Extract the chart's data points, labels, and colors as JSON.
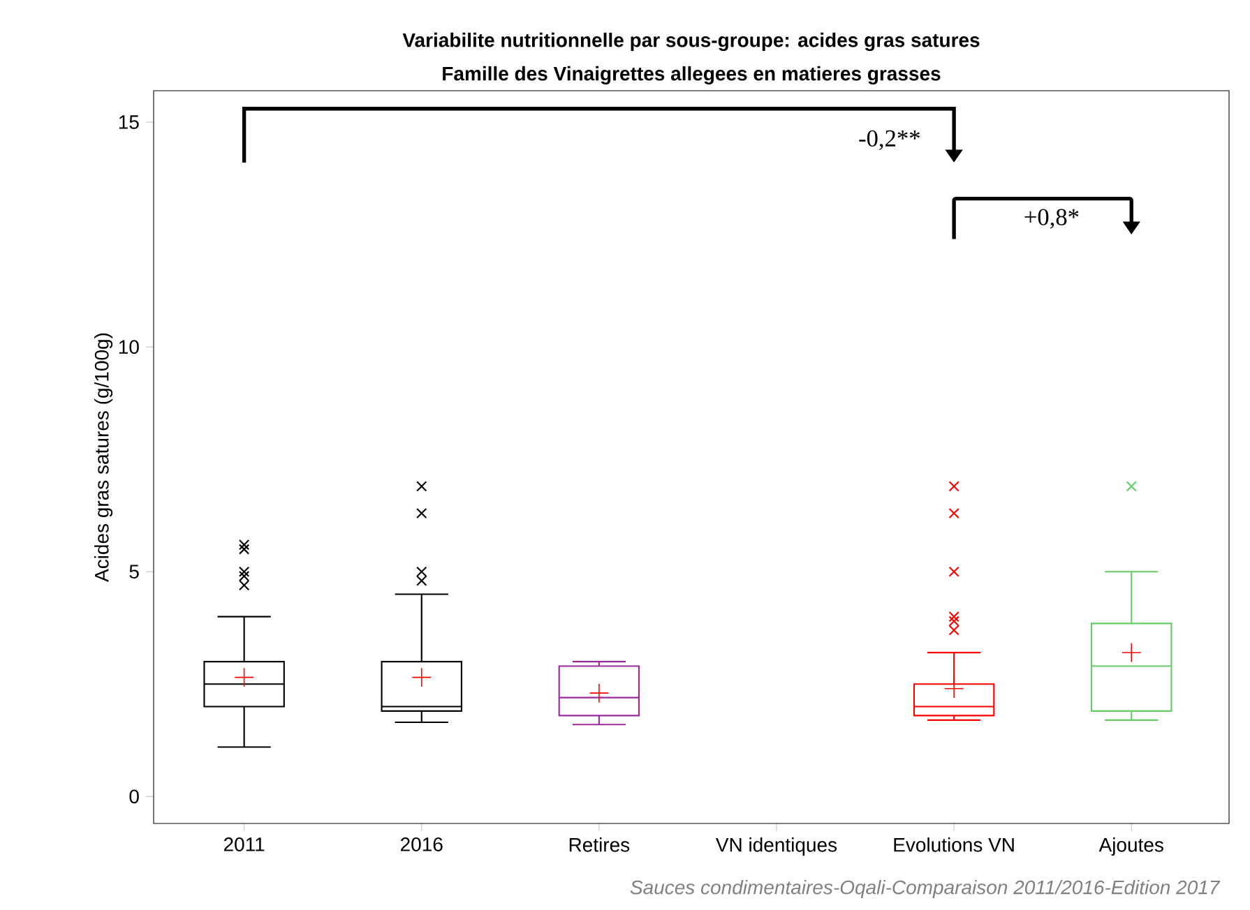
{
  "chart_data": {
    "type": "box",
    "title": "Variabilite nutritionnelle par sous-groupe: acides gras satures",
    "subtitle": "Famille des Vinaigrettes allegees en matieres grasses",
    "ylabel": "Acides gras satures (g/100g)",
    "categories": [
      "2011",
      "2016",
      "Retires",
      "VN identiques",
      "Evolutions VN",
      "Ajoutes"
    ],
    "colors": [
      "#000000",
      "#000000",
      "#9b2a9b",
      null,
      "#ff0000",
      "#66cc66"
    ],
    "boxes": [
      {
        "low": 1.1,
        "q1": 2.0,
        "median": 2.5,
        "q3": 3.0,
        "high": 4.0,
        "mean": 2.65,
        "outliers": [
          5.6,
          5.5,
          5.0,
          4.9,
          4.7
        ]
      },
      {
        "low": 1.65,
        "q1": 1.9,
        "median": 2.0,
        "q3": 3.0,
        "high": 4.5,
        "mean": 2.65,
        "outliers": [
          6.9,
          6.3,
          5.0,
          4.8
        ]
      },
      {
        "low": 1.6,
        "q1": 1.8,
        "median": 2.2,
        "q3": 2.9,
        "high": 3.0,
        "mean": 2.3
      },
      null,
      {
        "low": 1.7,
        "q1": 1.8,
        "median": 2.0,
        "q3": 2.5,
        "high": 3.2,
        "mean": 2.4,
        "outliers": [
          6.9,
          6.3,
          5.0,
          4.0,
          3.9,
          3.7
        ]
      },
      {
        "low": 1.7,
        "q1": 1.9,
        "median": 2.9,
        "q3": 3.85,
        "high": 5.0,
        "mean": 3.2,
        "outliers": [
          6.9
        ]
      }
    ],
    "ylim": [
      -0.6,
      15.7
    ],
    "yticks": [
      0,
      5,
      10,
      15
    ],
    "marker": "cross",
    "annotations": [
      "-0,2**",
      "+0,8*",
      "Sauces condimentaires-Oqali-Comparaison 2011/2016-Edition 2017"
    ]
  }
}
